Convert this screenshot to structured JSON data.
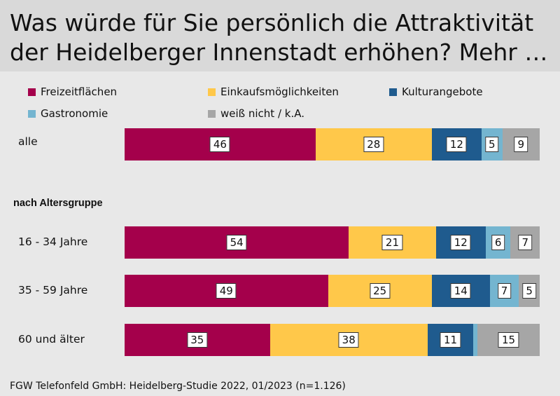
{
  "title_line1": "Was würde für Sie persönlich die Attraktivität",
  "title_line2": "der Heidelberger Innenstadt erhöhen?  Mehr …",
  "group_heading": "nach Altersgruppe",
  "footer": "FGW Telefonfeld GmbH: Heidelberg-Studie 2022, 01/2023 (n=1.126)",
  "chart_data": {
    "type": "bar",
    "orientation": "horizontal",
    "stacked": true,
    "unit": "percent",
    "categories": [
      "alle",
      "16 - 34 Jahre",
      "35 - 59 Jahre",
      "60 und älter"
    ],
    "series": [
      {
        "name": "Freizeitflächen",
        "color": "#a4004b",
        "values": [
          46,
          54,
          49,
          35
        ]
      },
      {
        "name": "Einkaufsmöglichkeiten",
        "color": "#ffc84a",
        "values": [
          28,
          21,
          25,
          38
        ]
      },
      {
        "name": "Kulturangebote",
        "color": "#1f5b8e",
        "values": [
          12,
          12,
          14,
          11
        ]
      },
      {
        "name": "Gastronomie",
        "color": "#74b5d0",
        "values": [
          5,
          6,
          7,
          1
        ]
      },
      {
        "name": "weiß nicht / k.A.",
        "color": "#a6a6a6",
        "values": [
          9,
          7,
          5,
          15
        ]
      }
    ],
    "value_labels": [
      [
        "46",
        "28",
        "12",
        "5",
        "9"
      ],
      [
        "54",
        "21",
        "12",
        "6",
        "7"
      ],
      [
        "49",
        "25",
        "14",
        "7",
        "5"
      ],
      [
        "35",
        "38",
        "11",
        "",
        "15"
      ]
    ],
    "legend_position": "top"
  }
}
